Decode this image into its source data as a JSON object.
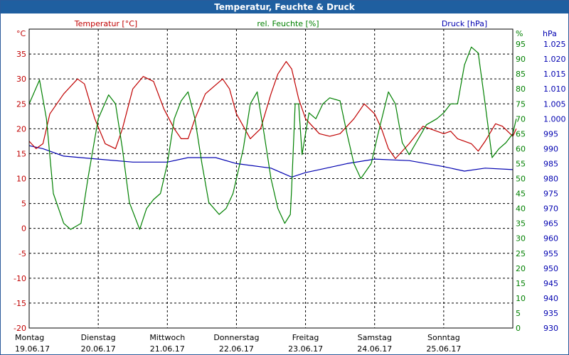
{
  "window": {
    "title": "Temperatur, Feuchte & Druck"
  },
  "colors": {
    "temperature": "#c00000",
    "humidity": "#008000",
    "pressure": "#0000b0",
    "grid": "#000000",
    "title_bg": "#1f5fa0"
  },
  "chart_data": {
    "type": "line",
    "title": "Temperatur, Feuchte & Druck",
    "x_range": [
      0,
      7
    ],
    "x_ticks": [
      {
        "x": 0,
        "day": "Montag",
        "date": "19.06.17"
      },
      {
        "x": 1,
        "day": "Dienstag",
        "date": "20.06.17"
      },
      {
        "x": 2,
        "day": "Mittwoch",
        "date": "21.06.17"
      },
      {
        "x": 3,
        "day": "Donnerstag",
        "date": "22.06.17"
      },
      {
        "x": 4,
        "day": "Freitag",
        "date": "23.06.17"
      },
      {
        "x": 5,
        "day": "Samstag",
        "date": "24.06.17"
      },
      {
        "x": 6,
        "day": "Sonntag",
        "date": "25.06.17"
      }
    ],
    "axes": {
      "temperature": {
        "label": "Temperatur [°C]",
        "unit": "°C",
        "range": [
          -20,
          40
        ],
        "ticks": [
          "35",
          "30",
          "25",
          "20",
          "15",
          "10",
          "5",
          "0",
          "-5",
          "-10",
          "-15",
          "-20"
        ],
        "tick_values": [
          35,
          30,
          25,
          20,
          15,
          10,
          5,
          0,
          -5,
          -10,
          -15,
          -20
        ]
      },
      "humidity": {
        "label": "rel. Feuchte [%]",
        "unit": "%",
        "range": [
          0,
          100
        ],
        "ticks": [
          "95",
          "90",
          "85",
          "80",
          "75",
          "70",
          "65",
          "60",
          "55",
          "50",
          "45",
          "40",
          "35",
          "30",
          "25",
          "20",
          "15",
          "10",
          "5",
          "0"
        ],
        "tick_values": [
          95,
          90,
          85,
          80,
          75,
          70,
          65,
          60,
          55,
          50,
          45,
          40,
          35,
          30,
          25,
          20,
          15,
          10,
          5,
          0
        ]
      },
      "pressure": {
        "label": "Druck [hPa]",
        "unit": "hPa",
        "range": [
          930,
          1030
        ],
        "ticks": [
          "1.025",
          "1.020",
          "1.015",
          "1.010",
          "1.005",
          "1.000",
          "995",
          "990",
          "985",
          "980",
          "975",
          "970",
          "965",
          "960",
          "955",
          "950",
          "945",
          "940",
          "935",
          "930"
        ],
        "tick_values": [
          1025,
          1020,
          1015,
          1010,
          1005,
          1000,
          995,
          990,
          985,
          980,
          975,
          970,
          965,
          960,
          955,
          950,
          945,
          940,
          935,
          930
        ]
      }
    },
    "series": [
      {
        "name": "Temperatur [°C]",
        "axis": "temperature",
        "points": [
          [
            0,
            17.5
          ],
          [
            0.1,
            16
          ],
          [
            0.2,
            17
          ],
          [
            0.3,
            23
          ],
          [
            0.5,
            27
          ],
          [
            0.7,
            30
          ],
          [
            0.8,
            29
          ],
          [
            0.95,
            22
          ],
          [
            1.1,
            17
          ],
          [
            1.25,
            16
          ],
          [
            1.35,
            20
          ],
          [
            1.5,
            28
          ],
          [
            1.65,
            30.5
          ],
          [
            1.8,
            29.5
          ],
          [
            1.95,
            24
          ],
          [
            2.1,
            20
          ],
          [
            2.2,
            18
          ],
          [
            2.3,
            18
          ],
          [
            2.4,
            22
          ],
          [
            2.55,
            27
          ],
          [
            2.8,
            30
          ],
          [
            2.9,
            28
          ],
          [
            3.0,
            23
          ],
          [
            3.2,
            18
          ],
          [
            3.35,
            20
          ],
          [
            3.5,
            27
          ],
          [
            3.6,
            31
          ],
          [
            3.72,
            33.5
          ],
          [
            3.8,
            32
          ],
          [
            3.9,
            26
          ],
          [
            4.0,
            22
          ],
          [
            4.1,
            20.5
          ],
          [
            4.2,
            19
          ],
          [
            4.35,
            18.5
          ],
          [
            4.5,
            19
          ],
          [
            4.7,
            22
          ],
          [
            4.85,
            25
          ],
          [
            5.0,
            23
          ],
          [
            5.1,
            20
          ],
          [
            5.2,
            16
          ],
          [
            5.3,
            14
          ],
          [
            5.5,
            17
          ],
          [
            5.7,
            20.5
          ],
          [
            5.8,
            20
          ],
          [
            6.0,
            19
          ],
          [
            6.1,
            19.5
          ],
          [
            6.2,
            18
          ],
          [
            6.4,
            17
          ],
          [
            6.5,
            15.5
          ],
          [
            6.6,
            17.5
          ],
          [
            6.75,
            21
          ],
          [
            6.85,
            20.5
          ],
          [
            7.0,
            18.5
          ],
          [
            7.05,
            20
          ]
        ]
      },
      {
        "name": "rel. Feuchte [%]",
        "axis": "humidity",
        "points": [
          [
            0,
            75
          ],
          [
            0.15,
            83
          ],
          [
            0.25,
            70
          ],
          [
            0.35,
            45
          ],
          [
            0.5,
            35
          ],
          [
            0.6,
            33
          ],
          [
            0.75,
            35
          ],
          [
            0.85,
            50
          ],
          [
            1.0,
            70
          ],
          [
            1.15,
            78
          ],
          [
            1.25,
            75
          ],
          [
            1.35,
            60
          ],
          [
            1.45,
            42
          ],
          [
            1.6,
            33
          ],
          [
            1.7,
            40
          ],
          [
            1.8,
            43
          ],
          [
            1.9,
            45
          ],
          [
            2.0,
            55
          ],
          [
            2.1,
            70
          ],
          [
            2.2,
            76
          ],
          [
            2.3,
            79
          ],
          [
            2.4,
            70
          ],
          [
            2.5,
            55
          ],
          [
            2.6,
            42
          ],
          [
            2.75,
            38
          ],
          [
            2.85,
            40
          ],
          [
            2.95,
            45
          ],
          [
            3.1,
            60
          ],
          [
            3.2,
            75
          ],
          [
            3.3,
            79
          ],
          [
            3.4,
            65
          ],
          [
            3.5,
            50
          ],
          [
            3.6,
            40
          ],
          [
            3.7,
            35
          ],
          [
            3.78,
            38
          ],
          [
            3.8,
            47
          ],
          [
            3.85,
            75
          ],
          [
            3.9,
            75
          ],
          [
            3.95,
            58
          ],
          [
            4.05,
            72
          ],
          [
            4.15,
            70
          ],
          [
            4.25,
            75
          ],
          [
            4.35,
            77
          ],
          [
            4.5,
            76
          ],
          [
            4.6,
            65
          ],
          [
            4.7,
            55
          ],
          [
            4.8,
            50
          ],
          [
            4.95,
            55
          ],
          [
            5.05,
            65
          ],
          [
            5.2,
            79
          ],
          [
            5.3,
            75
          ],
          [
            5.4,
            62
          ],
          [
            5.5,
            58
          ],
          [
            5.6,
            62
          ],
          [
            5.75,
            68
          ],
          [
            5.9,
            70
          ],
          [
            6.0,
            72
          ],
          [
            6.1,
            75
          ],
          [
            6.2,
            75
          ],
          [
            6.3,
            88
          ],
          [
            6.4,
            94
          ],
          [
            6.5,
            92
          ],
          [
            6.6,
            75
          ],
          [
            6.7,
            57
          ],
          [
            6.8,
            60
          ],
          [
            6.9,
            62
          ],
          [
            7.0,
            65
          ],
          [
            7.05,
            70
          ]
        ]
      },
      {
        "name": "Druck [hPa]",
        "axis": "pressure",
        "points": [
          [
            0,
            991
          ],
          [
            0.2,
            990
          ],
          [
            0.5,
            987.5
          ],
          [
            1.0,
            986.5
          ],
          [
            1.5,
            985.5
          ],
          [
            2.0,
            985.5
          ],
          [
            2.3,
            987
          ],
          [
            2.7,
            987
          ],
          [
            3.0,
            985
          ],
          [
            3.5,
            983.5
          ],
          [
            3.8,
            980.5
          ],
          [
            4.0,
            982
          ],
          [
            4.2,
            983
          ],
          [
            4.6,
            985
          ],
          [
            5.0,
            986.5
          ],
          [
            5.5,
            986
          ],
          [
            6.0,
            984
          ],
          [
            6.3,
            982.5
          ],
          [
            6.6,
            983.5
          ],
          [
            7.0,
            983
          ]
        ]
      }
    ]
  }
}
